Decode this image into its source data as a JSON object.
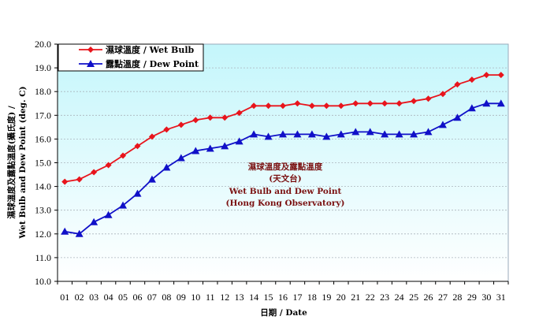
{
  "chart_data": {
    "type": "line",
    "title": "",
    "annotation": [
      "濕球溫度及露點溫度",
      "(天文台)",
      "Wet Bulb and Dew Point",
      "(Hong Kong Observatory)"
    ],
    "xlabel": "日期 / Date",
    "ylabel": [
      "濕球溫度及露點溫度(攝氏度) /",
      "Wet Bulb and Dew Point (deg. C)"
    ],
    "ylim": [
      10.0,
      20.0
    ],
    "yticks": [
      "10.0",
      "11.0",
      "12.0",
      "13.0",
      "14.0",
      "15.0",
      "16.0",
      "17.0",
      "18.0",
      "19.0",
      "20.0"
    ],
    "categories": [
      "01",
      "02",
      "03",
      "04",
      "05",
      "06",
      "07",
      "08",
      "09",
      "10",
      "11",
      "12",
      "13",
      "14",
      "15",
      "16",
      "17",
      "18",
      "19",
      "20",
      "21",
      "22",
      "23",
      "24",
      "25",
      "26",
      "27",
      "28",
      "29",
      "30",
      "31"
    ],
    "grid": "horizontal dashed",
    "legend_position": "top-left",
    "series": [
      {
        "name": "濕球溫度 / Wet Bulb",
        "color": "#e8141c",
        "marker": "diamond",
        "values": [
          14.2,
          14.3,
          14.6,
          14.9,
          15.3,
          15.7,
          16.1,
          16.4,
          16.6,
          16.8,
          16.9,
          16.9,
          17.1,
          17.4,
          17.4,
          17.4,
          17.5,
          17.4,
          17.4,
          17.4,
          17.5,
          17.5,
          17.5,
          17.5,
          17.6,
          17.7,
          17.9,
          18.3,
          18.5,
          18.7,
          18.7
        ]
      },
      {
        "name": "露點溫度 / Dew Point",
        "color": "#1010c8",
        "marker": "triangle",
        "values": [
          12.1,
          12.0,
          12.5,
          12.8,
          13.2,
          13.7,
          14.3,
          14.8,
          15.2,
          15.5,
          15.6,
          15.7,
          15.9,
          16.2,
          16.1,
          16.2,
          16.2,
          16.2,
          16.1,
          16.2,
          16.3,
          16.3,
          16.2,
          16.2,
          16.2,
          16.3,
          16.6,
          16.9,
          17.3,
          17.5,
          17.5
        ]
      }
    ]
  },
  "colors": {
    "plot_bg_top": "#c4f6fb",
    "plot_bg_bottom": "#ffffff",
    "annotation": "#7a1010"
  }
}
